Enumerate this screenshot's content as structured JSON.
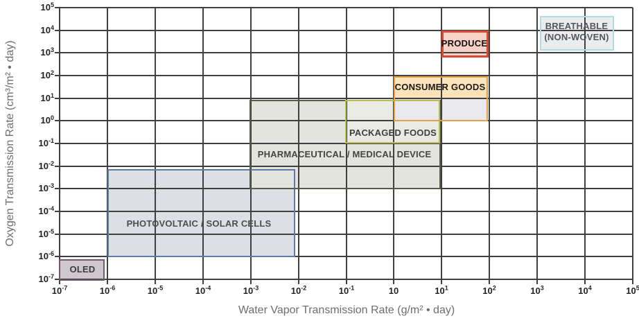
{
  "chart_data": {
    "type": "annotated-region-chart (log-log rectangles)",
    "title": "",
    "grid": {
      "color": "#3f3f3f",
      "line_width": 2,
      "grid_on": true
    },
    "x_axis": {
      "label": "Water Vapor Transmission Rate (g/m² • day)",
      "scale": "log",
      "min_exp": -7,
      "max_exp": 5,
      "ticks": [
        {
          "exp": -7,
          "base": "10",
          "sup": "-7"
        },
        {
          "exp": -6,
          "base": "10",
          "sup": "-6"
        },
        {
          "exp": -5,
          "base": "10",
          "sup": "-5"
        },
        {
          "exp": -4,
          "base": "10",
          "sup": "-4"
        },
        {
          "exp": -3,
          "base": "10",
          "sup": "-3"
        },
        {
          "exp": -2,
          "base": "10",
          "sup": "-2"
        },
        {
          "exp": -1,
          "base": "10",
          "sup": "-1"
        },
        {
          "exp": 0,
          "base": "10",
          "sup": ""
        },
        {
          "exp": 1,
          "base": "10",
          "sup": "1"
        },
        {
          "exp": 2,
          "base": "10",
          "sup": "2"
        },
        {
          "exp": 3,
          "base": "10",
          "sup": "3"
        },
        {
          "exp": 4,
          "base": "10",
          "sup": "4"
        },
        {
          "exp": 5,
          "base": "10",
          "sup": "5"
        }
      ]
    },
    "y_axis": {
      "label": "Oxygen Transmission Rate (cm³/m² • day)",
      "scale": "log",
      "min_exp": -7,
      "max_exp": 5,
      "ticks": [
        {
          "exp": 5,
          "base": "10",
          "sup": "5"
        },
        {
          "exp": 4,
          "base": "10",
          "sup": "4"
        },
        {
          "exp": 3,
          "base": "10",
          "sup": "3"
        },
        {
          "exp": 2,
          "base": "10",
          "sup": "2"
        },
        {
          "exp": 1,
          "base": "10",
          "sup": "1"
        },
        {
          "exp": 0,
          "base": "10",
          "sup": "0"
        },
        {
          "exp": -1,
          "base": "10",
          "sup": "-1"
        },
        {
          "exp": -2,
          "base": "10",
          "sup": "-2"
        },
        {
          "exp": -3,
          "base": "10",
          "sup": "-3"
        },
        {
          "exp": -4,
          "base": "10",
          "sup": "-4"
        },
        {
          "exp": -5,
          "base": "10",
          "sup": "-5"
        },
        {
          "exp": -6,
          "base": "10",
          "sup": "-6"
        },
        {
          "exp": -7,
          "base": "10",
          "sup": "-7"
        }
      ]
    },
    "regions": [
      {
        "id": "photovoltaic-solar-cells",
        "label_lines": [
          "PHOTOVOLTAIC / SOLAR CELLS"
        ],
        "x_exp": [
          -6.0,
          -2.07
        ],
        "y_exp": [
          -6.02,
          -2.12
        ],
        "fill": "#dce0e5",
        "border": "#5d7ba8",
        "border_width": 2,
        "label_color": "#4d4d4f",
        "label_anchor_exp": [
          -4.08,
          -4.55
        ]
      },
      {
        "id": "oled",
        "label_lines": [
          "OLED"
        ],
        "x_exp": [
          -7.02,
          -6.05
        ],
        "y_exp": [
          -7.05,
          -6.1
        ],
        "fill": "#cfc7ce",
        "border": "#6f5b6a",
        "border_width": 2,
        "label_color": "#3c3c3e",
        "label_anchor_exp": [
          -6.52,
          -6.58
        ]
      },
      {
        "id": "pharmaceutical-medical-device",
        "label_lines": [
          "PHARMACEUTICAL / MEDICAL DEVICE"
        ],
        "x_exp": [
          -3.03,
          0.98
        ],
        "y_exp": [
          -3.02,
          0.93
        ],
        "fill": "#e3e4de",
        "border": "#565b45",
        "border_width": 2,
        "label_color": "#454547",
        "label_anchor_exp": [
          -1.04,
          -1.49
        ]
      },
      {
        "id": "packaged-foods",
        "label_lines": [
          "PACKAGED FOODS"
        ],
        "x_exp": [
          -1.02,
          0.96
        ],
        "y_exp": [
          -1.0,
          0.93
        ],
        "fill": "#e9eae3",
        "border": "#b4bc52",
        "border_width": 2,
        "label_color": "#3f3f41",
        "label_anchor_exp": [
          -0.02,
          -0.54
        ]
      },
      {
        "id": "consumer-goods",
        "label_lines": [
          "CONSUMER GOODS"
        ],
        "x_exp": [
          0.0,
          1.97
        ],
        "y_exp": [
          -0.02,
          1.96
        ],
        "fill": "#e9e9ed",
        "band": {
          "y_exp": [
            1.0,
            1.96
          ],
          "fill": "#fce3ba"
        },
        "border": "#e1a14a",
        "border_width": 2,
        "label_color": "#1c1a1b",
        "label_anchor_exp": [
          0.97,
          1.48
        ]
      },
      {
        "id": "produce",
        "label_lines": [
          "PRODUCE"
        ],
        "x_exp": [
          1.0,
          1.98
        ],
        "y_exp": [
          2.8,
          3.99
        ],
        "fill": "#f8d2c7",
        "border": "#dc4733",
        "border_width": 3,
        "label_color": "#141214",
        "label_anchor_exp": [
          1.47,
          3.41
        ]
      },
      {
        "id": "breathable-non-woven",
        "label_lines": [
          "BREATHABLE",
          "(NON-WOVEN)"
        ],
        "x_exp": [
          3.05,
          4.61
        ],
        "y_exp": [
          3.1,
          4.63
        ],
        "fill": "#ebecee",
        "border": "#b3d9e7",
        "border_width": 2,
        "label_color": "#55565a",
        "label_anchor_exp": [
          3.82,
          3.94
        ]
      }
    ]
  }
}
